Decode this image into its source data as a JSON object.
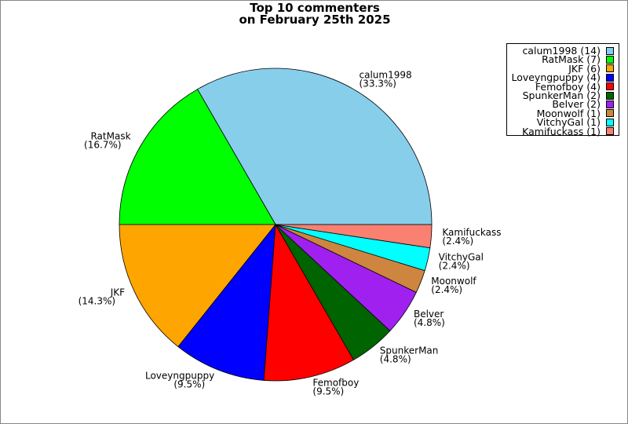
{
  "chart_data": {
    "type": "pie",
    "title": [
      "Top 10 commenters",
      "on February 25th 2025"
    ],
    "start_angle_deg": 0,
    "direction": "counterclockwise",
    "legend_placement": "top-right",
    "slices": [
      {
        "label": "calum1998",
        "value": 14,
        "percent": "33.3%",
        "color": "#87CEEB"
      },
      {
        "label": "RatMask",
        "value": 7,
        "percent": "16.7%",
        "color": "#00FF00"
      },
      {
        "label": "JKF",
        "value": 6,
        "percent": "14.3%",
        "color": "#FFA500"
      },
      {
        "label": "Loveyngpuppy",
        "value": 4,
        "percent": "9.5%",
        "color": "#0000FF"
      },
      {
        "label": "Femofboy",
        "value": 4,
        "percent": "9.5%",
        "color": "#FF0000"
      },
      {
        "label": "SpunkerMan",
        "value": 2,
        "percent": "4.8%",
        "color": "#006400"
      },
      {
        "label": "Belver",
        "value": 2,
        "percent": "4.8%",
        "color": "#A020F0"
      },
      {
        "label": "Moonwolf",
        "value": 1,
        "percent": "2.4%",
        "color": "#CD853F"
      },
      {
        "label": "VitchyGal",
        "value": 1,
        "percent": "2.4%",
        "color": "#00FFFF"
      },
      {
        "label": "Kamifuckass",
        "value": 1,
        "percent": "2.4%",
        "color": "#FA8072"
      }
    ]
  }
}
